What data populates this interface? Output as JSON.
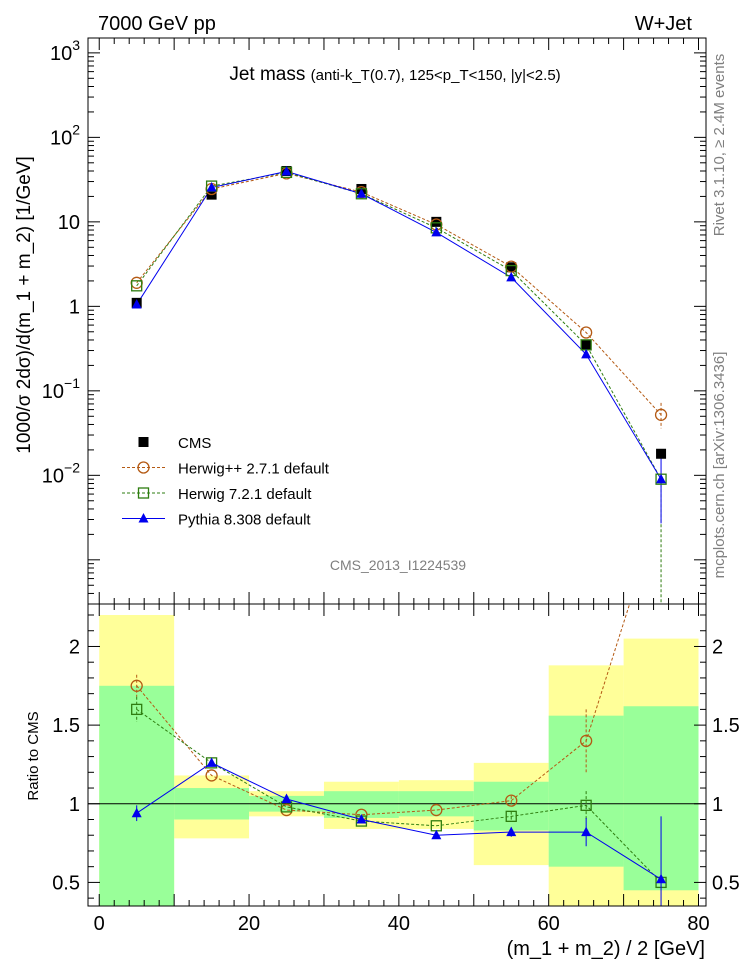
{
  "header": {
    "left": "7000 GeV pp",
    "right": "W+Jet",
    "side_top": "Rivet 3.1.10, ≥ 2.4M events",
    "side_bottom": "mcplots.cern.ch [arXiv:1306.3436]",
    "watermark": "CMS_2013_I1224539"
  },
  "chart_data": [
    {
      "type": "line",
      "panel": "main",
      "title_main": "Jet mass",
      "title_detail": "(anti-k_T(0.7), 125<p_T<150, |y|<2.5)",
      "xlabel": "(m_1 + m_2) / 2 [GeV]",
      "ylabel": "1000/σ 2dσ)/d(m_1 + m_2) [1/GeV]",
      "xlim": [
        -1.5,
        81
      ],
      "ylim": [
        0.0003,
        1500
      ],
      "yscale": "log",
      "yticks": [
        {
          "v": 0.01,
          "label": "10",
          "exp": "−2"
        },
        {
          "v": 0.1,
          "label": "10",
          "exp": "−1"
        },
        {
          "v": 1,
          "label": "1",
          "exp": ""
        },
        {
          "v": 10,
          "label": "10",
          "exp": ""
        },
        {
          "v": 100,
          "label": "10",
          "exp": "2"
        },
        {
          "v": 1000,
          "label": "10",
          "exp": "3"
        }
      ],
      "legend_position": "bottom-left",
      "x": [
        5,
        15,
        25,
        35,
        45,
        55,
        65,
        75
      ],
      "series": [
        {
          "name": "CMS",
          "color": "#000000",
          "marker": "square",
          "values": [
            1.1,
            21,
            40,
            24.5,
            10,
            2.9,
            0.35,
            0.018
          ]
        },
        {
          "name": "Herwig++ 2.7.1 default",
          "color": "#b45a14",
          "marker": "circle-open",
          "dash": true,
          "values": [
            1.9,
            24.5,
            37.5,
            22.5,
            9.3,
            2.95,
            0.49,
            0.052
          ]
        },
        {
          "name": "Herwig 7.2.1 default",
          "color": "#2e7d10",
          "marker": "square-open",
          "dash": true,
          "values": [
            1.75,
            26.5,
            38.5,
            21.5,
            8.5,
            2.65,
            0.35,
            0.009
          ]
        },
        {
          "name": "Pythia 8.308 default",
          "color": "#0000ee",
          "marker": "triangle",
          "values": [
            1.05,
            25.5,
            39.5,
            21.5,
            7.5,
            2.2,
            0.27,
            0.009
          ]
        }
      ]
    },
    {
      "type": "line",
      "panel": "ratio",
      "ylabel": "Ratio to CMS",
      "xlabel": "(m_1 + m_2) / 2 [GeV]",
      "xlim": [
        -1.5,
        81
      ],
      "ylim": [
        0.35,
        2.27
      ],
      "xticks": [
        0,
        20,
        40,
        60,
        80
      ],
      "yticks": [
        0.5,
        1,
        1.5,
        2
      ],
      "bands": [
        {
          "x": [
            0,
            10
          ],
          "yellow": [
            0.35,
            2.2
          ],
          "green": [
            0.35,
            1.75
          ]
        },
        {
          "x": [
            10,
            20
          ],
          "yellow": [
            0.78,
            1.18
          ],
          "green": [
            0.9,
            1.1
          ]
        },
        {
          "x": [
            20,
            30
          ],
          "yellow": [
            0.92,
            1.08
          ],
          "green": [
            0.95,
            1.05
          ]
        },
        {
          "x": [
            30,
            40
          ],
          "yellow": [
            0.84,
            1.14
          ],
          "green": [
            0.91,
            1.08
          ]
        },
        {
          "x": [
            40,
            50
          ],
          "yellow": [
            0.84,
            1.15
          ],
          "green": [
            0.92,
            1.08
          ]
        },
        {
          "x": [
            50,
            60
          ],
          "yellow": [
            0.61,
            1.26
          ],
          "green": [
            0.83,
            1.14
          ]
        },
        {
          "x": [
            60,
            70
          ],
          "yellow": [
            0.35,
            1.88
          ],
          "green": [
            0.6,
            1.56
          ]
        },
        {
          "x": [
            70,
            80
          ],
          "yellow": [
            0.35,
            2.05
          ],
          "green": [
            0.45,
            1.62
          ]
        }
      ],
      "x": [
        5,
        15,
        25,
        35,
        45,
        55,
        65,
        75
      ],
      "series": [
        {
          "name": "Herwig++ 2.7.1 default",
          "color": "#b45a14",
          "marker": "circle-open",
          "dash": true,
          "values": [
            1.75,
            1.18,
            0.96,
            0.93,
            0.96,
            1.02,
            1.4,
            2.9
          ],
          "err": [
            0.07,
            0,
            0,
            0,
            0,
            0.03,
            0.2,
            0
          ]
        },
        {
          "name": "Herwig 7.2.1 default",
          "color": "#2e7d10",
          "marker": "square-open",
          "dash": true,
          "values": [
            1.6,
            1.26,
            0.98,
            0.89,
            0.86,
            0.92,
            0.99,
            0.5
          ],
          "err": [
            0.08,
            0,
            0,
            0,
            0,
            0.03,
            0.09,
            0.05
          ]
        },
        {
          "name": "Pythia 8.308 default",
          "color": "#0000ee",
          "marker": "triangle",
          "values": [
            0.94,
            1.26,
            1.03,
            0.9,
            0.8,
            0.82,
            0.82,
            0.52
          ],
          "err": [
            0.05,
            0,
            0,
            0,
            0,
            0.03,
            0.09,
            0.4
          ]
        }
      ]
    }
  ]
}
